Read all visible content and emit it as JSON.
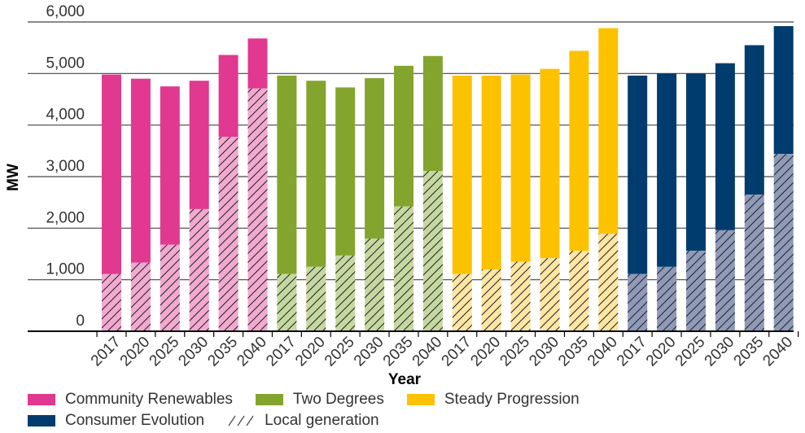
{
  "chart_data": {
    "type": "bar",
    "xlabel": "Year",
    "ylabel": "MW",
    "ylim": [
      0,
      6000
    ],
    "y_ticks": [
      "0",
      "1,000",
      "2,000",
      "3,000",
      "4,000",
      "5,000",
      "6,000"
    ],
    "grid": "horizontal",
    "categories": [
      "2017",
      "2020",
      "2025",
      "2030",
      "2035",
      "2040",
      "2017",
      "2020",
      "2025",
      "2030",
      "2035",
      "2040",
      "2017",
      "2020",
      "2025",
      "2030",
      "2035",
      "2040",
      "2017",
      "2020",
      "2025",
      "2030",
      "2035",
      "2040"
    ],
    "groups": [
      {
        "name": "Community Renewables",
        "color": "#e0398f",
        "light_color": "#f2a9cf",
        "total": [
          4980,
          4900,
          4750,
          4860,
          5360,
          5680
        ],
        "local_generation": [
          1110,
          1330,
          1680,
          2370,
          3770,
          4710
        ]
      },
      {
        "name": "Two Degrees",
        "color": "#83a52d",
        "light_color": "#c5d8a0",
        "total": [
          4960,
          4860,
          4730,
          4910,
          5150,
          5340
        ],
        "local_generation": [
          1110,
          1250,
          1470,
          1800,
          2420,
          3110
        ]
      },
      {
        "name": "Steady Progression",
        "color": "#fcc200",
        "light_color": "#fde6a4",
        "total": [
          4960,
          4960,
          4980,
          5090,
          5440,
          5880
        ],
        "local_generation": [
          1110,
          1200,
          1350,
          1420,
          1560,
          1890
        ]
      },
      {
        "name": "Consumer Evolution",
        "color": "#003c6e",
        "light_color": "#8f9ab9",
        "total": [
          4960,
          5000,
          5000,
          5200,
          5550,
          5920
        ],
        "local_generation": [
          1110,
          1250,
          1560,
          1960,
          2650,
          3440
        ]
      }
    ],
    "legend": {
      "placement": "bottom",
      "entries": [
        "Community Renewables",
        "Two Degrees",
        "Steady Progression",
        "Consumer Evolution",
        "Local generation"
      ]
    }
  }
}
